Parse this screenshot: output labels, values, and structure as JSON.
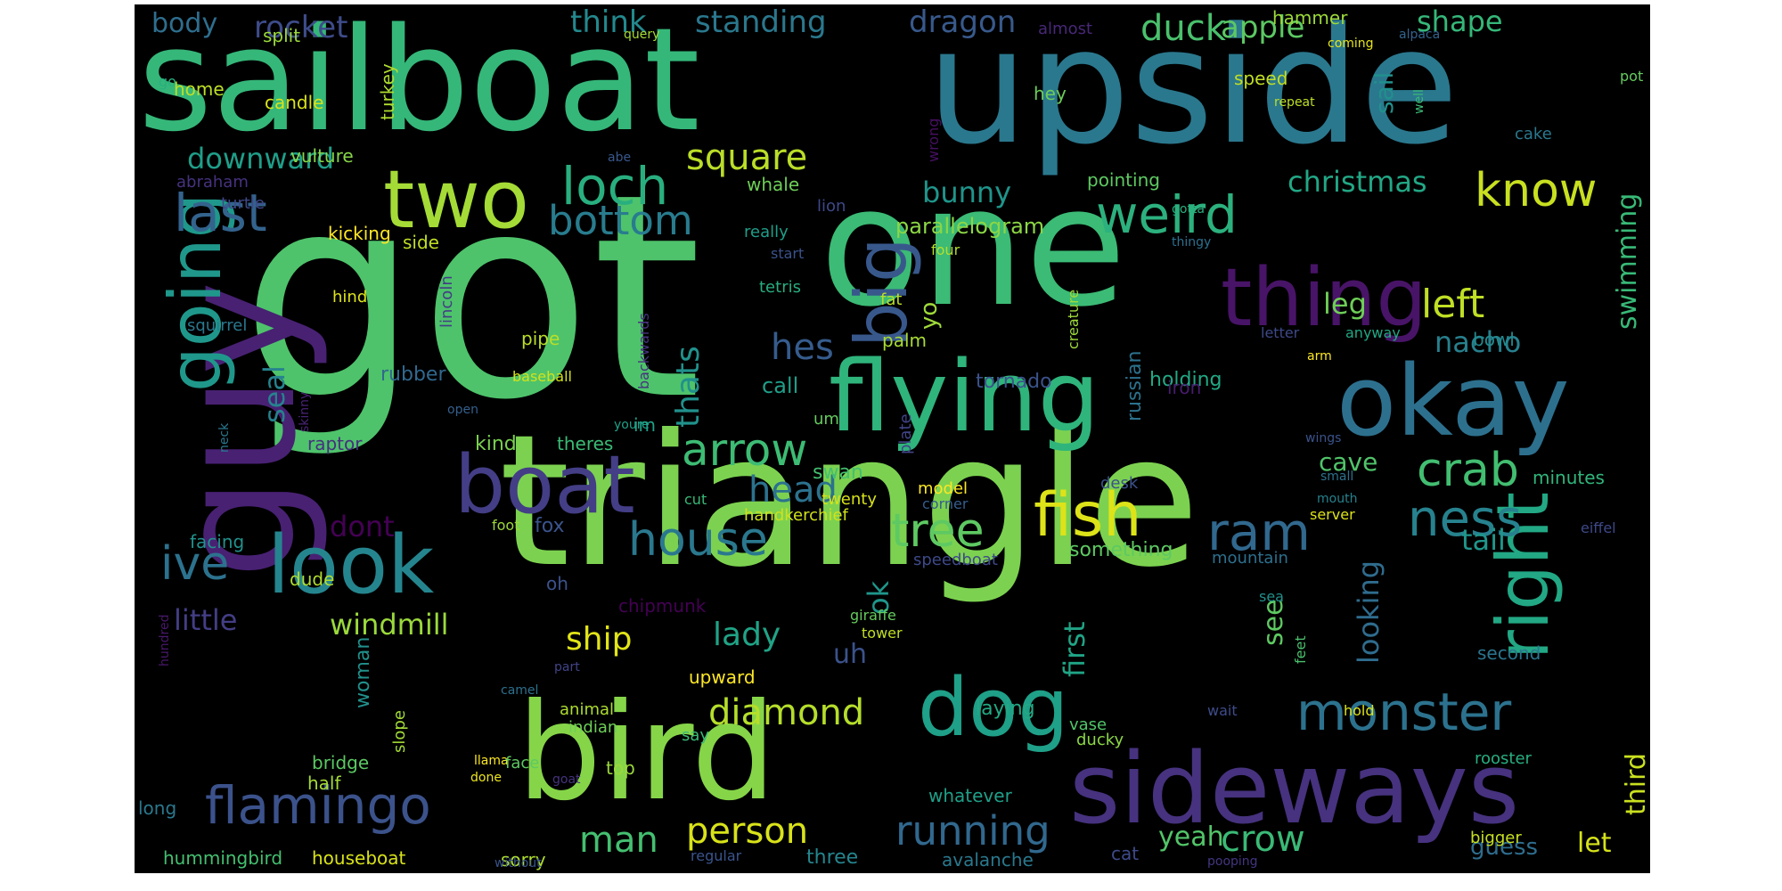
{
  "words": [
    {
      "text": "got",
      "color": "#4ec36b"
    },
    {
      "text": "triangle",
      "color": "#7cd250"
    },
    {
      "text": "one",
      "color": "#3bbb75"
    },
    {
      "text": "upside",
      "color": "#2a788e"
    },
    {
      "text": "sailboat",
      "color": "#35b779"
    },
    {
      "text": "guy",
      "color": "#482173"
    },
    {
      "text": "bird",
      "color": "#86d549"
    },
    {
      "text": "flying",
      "color": "#2fb47c"
    },
    {
      "text": "sideways",
      "color": "#46327e"
    },
    {
      "text": "okay",
      "color": "#2d708e"
    },
    {
      "text": "boat",
      "color": "#433e85"
    },
    {
      "text": "two",
      "color": "#a5db36"
    },
    {
      "text": "going",
      "color": "#1f988b"
    },
    {
      "text": "look",
      "color": "#25858e"
    },
    {
      "text": "thing",
      "color": "#481467"
    },
    {
      "text": "dog",
      "color": "#1fa088"
    },
    {
      "text": "big",
      "color": "#38588c"
    },
    {
      "text": "right",
      "color": "#22a884"
    },
    {
      "text": "flamingo",
      "color": "#3b528b"
    },
    {
      "text": "monster",
      "color": "#2c728e"
    },
    {
      "text": "house",
      "color": "#2a788e"
    },
    {
      "text": "fish",
      "color": "#dde318"
    },
    {
      "text": "arrow",
      "color": "#3dbc74"
    },
    {
      "text": "loch",
      "color": "#29af7f"
    },
    {
      "text": "weird",
      "color": "#2cb17e"
    },
    {
      "text": "last",
      "color": "#33638d"
    },
    {
      "text": "ram",
      "color": "#31688e"
    },
    {
      "text": "know",
      "color": "#c8e020"
    },
    {
      "text": "crab",
      "color": "#42be71"
    },
    {
      "text": "ness",
      "color": "#26828e"
    },
    {
      "text": "tree",
      "color": "#5ec962"
    },
    {
      "text": "ive",
      "color": "#2c728e"
    },
    {
      "text": "running",
      "color": "#31688e"
    },
    {
      "text": "bottom",
      "color": "#287c8e"
    },
    {
      "text": "square",
      "color": "#bade28"
    },
    {
      "text": "head",
      "color": "#2c728e"
    },
    {
      "text": "diamond",
      "color": "#b5de2b"
    },
    {
      "text": "person",
      "color": "#d8e219"
    },
    {
      "text": "man",
      "color": "#44bf70"
    },
    {
      "text": "crow",
      "color": "#3aba76"
    },
    {
      "text": "duck",
      "color": "#4ac16d"
    },
    {
      "text": "apple",
      "color": "#5cc863"
    },
    {
      "text": "dragon",
      "color": "#38598c"
    },
    {
      "text": "rocket",
      "color": "#3e4c8a"
    },
    {
      "text": "think",
      "color": "#23898e"
    },
    {
      "text": "standing",
      "color": "#2a788e"
    },
    {
      "text": "shape",
      "color": "#35b779"
    },
    {
      "text": "body",
      "color": "#2e6e8e"
    },
    {
      "text": "downward",
      "color": "#1f9e89"
    },
    {
      "text": "christmas",
      "color": "#22a785"
    },
    {
      "text": "bunny",
      "color": "#1f958b"
    },
    {
      "text": "swimming",
      "color": "#38b977"
    },
    {
      "text": "left",
      "color": "#bfdf25"
    },
    {
      "text": "leg",
      "color": "#6ece58"
    },
    {
      "text": "nacho",
      "color": "#27808e"
    },
    {
      "text": "hes",
      "color": "#365c8d"
    },
    {
      "text": "thats",
      "color": "#21918c"
    },
    {
      "text": "seal",
      "color": "#26828e"
    },
    {
      "text": "parallelogram",
      "color": "#8bd646"
    },
    {
      "text": "yo",
      "color": "#9fda3a"
    },
    {
      "text": "dont",
      "color": "#440154"
    },
    {
      "text": "lady",
      "color": "#20a386"
    },
    {
      "text": "ship",
      "color": "#e2e418"
    },
    {
      "text": "windmill",
      "color": "#9bd93c"
    },
    {
      "text": "little",
      "color": "#433e85"
    },
    {
      "text": "ok",
      "color": "#1f968b"
    },
    {
      "text": "see",
      "color": "#5ec962"
    },
    {
      "text": "first",
      "color": "#20a486"
    },
    {
      "text": "looking",
      "color": "#2f6c8e"
    },
    {
      "text": "tail",
      "color": "#1f968b"
    },
    {
      "text": "cave",
      "color": "#50c46a"
    },
    {
      "text": "third",
      "color": "#cae11f"
    },
    {
      "text": "let",
      "color": "#d5e21a"
    },
    {
      "text": "yeah",
      "color": "#52c569"
    },
    {
      "text": "guess",
      "color": "#2e6d8e"
    },
    {
      "text": "uh",
      "color": "#3b528b"
    },
    {
      "text": "sail",
      "color": "#21908d"
    },
    {
      "text": "hammer",
      "color": "#9dd93b"
    },
    {
      "text": "split",
      "color": "#9bd93c"
    },
    {
      "text": "home",
      "color": "#bddf26"
    },
    {
      "text": "candle",
      "color": "#dae319"
    },
    {
      "text": "turkey",
      "color": "#b0dd2f"
    },
    {
      "text": "speed",
      "color": "#c2df23"
    },
    {
      "text": "hey",
      "color": "#6ccd5a"
    },
    {
      "text": "vulture",
      "color": "#86d549"
    },
    {
      "text": "abraham",
      "color": "#46327e"
    },
    {
      "text": "turtle",
      "color": "#3f4889"
    },
    {
      "text": "whale",
      "color": "#6ece58"
    },
    {
      "text": "kicking",
      "color": "#fde725"
    },
    {
      "text": "side",
      "color": "#c0df25"
    },
    {
      "text": "really",
      "color": "#1f9e89"
    },
    {
      "text": "lion",
      "color": "#3e4989"
    },
    {
      "text": "tetris",
      "color": "#27ad81"
    },
    {
      "text": "fat",
      "color": "#bade28"
    },
    {
      "text": "palm",
      "color": "#a8db34"
    },
    {
      "text": "call",
      "color": "#1f9e89"
    },
    {
      "text": "tornado",
      "color": "#3b528b"
    },
    {
      "text": "holding",
      "color": "#22a884"
    },
    {
      "text": "russian",
      "color": "#2c728e"
    },
    {
      "text": "iron",
      "color": "#481c6e"
    },
    {
      "text": "pipe",
      "color": "#bade28"
    },
    {
      "text": "rubber",
      "color": "#31688e"
    },
    {
      "text": "baseball",
      "color": "#d2e21b"
    },
    {
      "text": "hind",
      "color": "#dde318"
    },
    {
      "text": "squirrel",
      "color": "#2a788e"
    },
    {
      "text": "raptor",
      "color": "#46307e"
    },
    {
      "text": "kind",
      "color": "#7ad151"
    },
    {
      "text": "theres",
      "color": "#3bbb75"
    },
    {
      "text": "im",
      "color": "#1fa088"
    },
    {
      "text": "youre",
      "color": "#1fa188"
    },
    {
      "text": "swan",
      "color": "#44bf70"
    },
    {
      "text": "twenty",
      "color": "#d8e219"
    },
    {
      "text": "handkerchief",
      "color": "#d0e11c"
    },
    {
      "text": "model",
      "color": "#fde725"
    },
    {
      "text": "corner",
      "color": "#365d8d"
    },
    {
      "text": "pointing",
      "color": "#5ec962"
    },
    {
      "text": "desk",
      "color": "#3b528b"
    },
    {
      "text": "minutes",
      "color": "#31b57b"
    },
    {
      "text": "something",
      "color": "#5ec962"
    },
    {
      "text": "speedboat",
      "color": "#3e4989"
    },
    {
      "text": "mountain",
      "color": "#2d708e"
    },
    {
      "text": "fox",
      "color": "#3a548c"
    },
    {
      "text": "dude",
      "color": "#b0dd2f"
    },
    {
      "text": "woman",
      "color": "#21918c"
    },
    {
      "text": "bridge",
      "color": "#5cc863"
    },
    {
      "text": "half",
      "color": "#a5db36"
    },
    {
      "text": "long",
      "color": "#2a788e"
    },
    {
      "text": "hummingbird",
      "color": "#44bf70"
    },
    {
      "text": "houseboat",
      "color": "#d8e219"
    },
    {
      "text": "sorry",
      "color": "#addc30"
    },
    {
      "text": "three",
      "color": "#25858e"
    },
    {
      "text": "avalanche",
      "color": "#2a788e"
    },
    {
      "text": "whatever",
      "color": "#1f9f88"
    },
    {
      "text": "cat",
      "color": "#3e4a89"
    },
    {
      "text": "upward",
      "color": "#fde725"
    },
    {
      "text": "indian",
      "color": "#6ece58"
    },
    {
      "text": "animal",
      "color": "#addc30"
    },
    {
      "text": "top",
      "color": "#9bd93c"
    },
    {
      "text": "say",
      "color": "#3aba76"
    },
    {
      "text": "laying",
      "color": "#22a884"
    },
    {
      "text": "vase",
      "color": "#50c46a"
    },
    {
      "text": "ducky",
      "color": "#8bd646"
    },
    {
      "text": "bigger",
      "color": "#c8e020"
    },
    {
      "text": "rooster",
      "color": "#28ae80"
    },
    {
      "text": "second",
      "color": "#2b758e"
    },
    {
      "text": "hold",
      "color": "#dde318"
    },
    {
      "text": "feet",
      "color": "#4ac16d"
    },
    {
      "text": "slope",
      "color": "#a2da37"
    },
    {
      "text": "llama",
      "color": "#fde725"
    },
    {
      "text": "done",
      "color": "#ece51b"
    },
    {
      "text": "goat",
      "color": "#46337e"
    },
    {
      "text": "face",
      "color": "#5ec962"
    },
    {
      "text": "regular",
      "color": "#3a548c"
    },
    {
      "text": "without",
      "color": "#39558c"
    },
    {
      "text": "pooping",
      "color": "#453581"
    },
    {
      "text": "camel",
      "color": "#2d708e"
    },
    {
      "text": "part",
      "color": "#414487"
    },
    {
      "text": "hundred",
      "color": "#48186a"
    },
    {
      "text": "chipmunk",
      "color": "#440154"
    },
    {
      "text": "giraffe",
      "color": "#65cb5e"
    },
    {
      "text": "tower",
      "color": "#c2df23"
    },
    {
      "text": "oh",
      "color": "#3b528b"
    },
    {
      "text": "sea",
      "color": "#21918c"
    },
    {
      "text": "cut",
      "color": "#38b977"
    },
    {
      "text": "foot",
      "color": "#9dd93b"
    },
    {
      "text": "facing",
      "color": "#21918c"
    },
    {
      "text": "server",
      "color": "#dde318"
    },
    {
      "text": "eiffel",
      "color": "#3e4989"
    },
    {
      "text": "mouth",
      "color": "#26828e"
    },
    {
      "text": "small",
      "color": "#2c728e"
    },
    {
      "text": "wings",
      "color": "#3b528b"
    },
    {
      "text": "arm",
      "color": "#fde725"
    },
    {
      "text": "letter",
      "color": "#3e4989"
    },
    {
      "text": "anyway",
      "color": "#22a884"
    },
    {
      "text": "bowl",
      "color": "#23898e"
    },
    {
      "text": "creature",
      "color": "#9fda3a"
    },
    {
      "text": "backwards",
      "color": "#46337e"
    },
    {
      "text": "lincoln",
      "color": "#433e85"
    },
    {
      "text": "open",
      "color": "#355f8d"
    },
    {
      "text": "skinny",
      "color": "#482475"
    },
    {
      "text": "neck",
      "color": "#2a788e"
    },
    {
      "text": "um",
      "color": "#65cb5e"
    },
    {
      "text": "plate",
      "color": "#414487"
    },
    {
      "text": "wrong",
      "color": "#471063"
    },
    {
      "text": "abe",
      "color": "#38588c"
    },
    {
      "text": "start",
      "color": "#3b528b"
    },
    {
      "text": "four",
      "color": "#b5de2b"
    },
    {
      "text": "thingy",
      "color": "#2d708e"
    },
    {
      "text": "gotta",
      "color": "#29af7f"
    },
    {
      "text": "well",
      "color": "#3aba76"
    },
    {
      "text": "repeat",
      "color": "#bddf26"
    },
    {
      "text": "cake",
      "color": "#2a788e"
    },
    {
      "text": "pot",
      "color": "#65cb5e"
    },
    {
      "text": "alpaca",
      "color": "#33638d"
    },
    {
      "text": "coming",
      "color": "#e5e419"
    },
    {
      "text": "query",
      "color": "#a5db36"
    },
    {
      "text": "almost",
      "color": "#482878"
    },
    {
      "text": "go",
      "color": "#29af7f"
    },
    {
      "text": "wait",
      "color": "#3e4c8a"
    }
  ]
}
